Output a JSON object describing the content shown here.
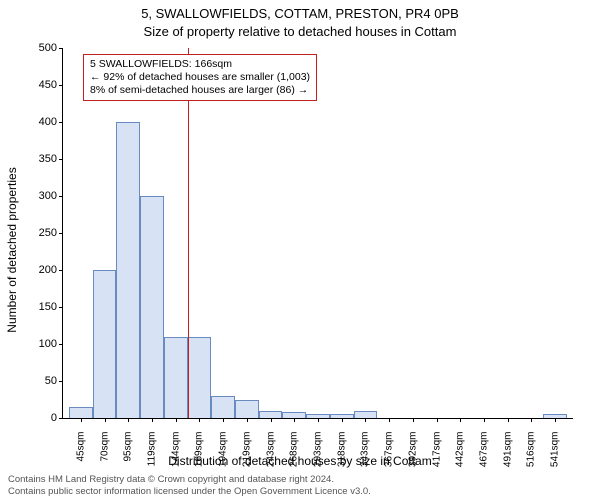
{
  "title_line1": "5, SWALLOWFIELDS, COTTAM, PRESTON, PR4 0PB",
  "title_line2": "Size of property relative to detached houses in Cottam",
  "ylabel": "Number of detached properties",
  "xlabel": "Distribution of detached houses by size in Cottam",
  "chart": {
    "type": "histogram",
    "ylim": [
      0,
      500
    ],
    "ytick_step": 50,
    "background_color": "#ffffff",
    "axis_color": "#000000",
    "bar_fill": "#d7e3f4",
    "bar_stroke": "#6a8bc0",
    "bar_width_ratio": 1.0,
    "marker_color": "#c02020",
    "xcategories": [
      "45sqm",
      "70sqm",
      "95sqm",
      "119sqm",
      "144sqm",
      "169sqm",
      "194sqm",
      "219sqm",
      "243sqm",
      "268sqm",
      "293sqm",
      "318sqm",
      "343sqm",
      "367sqm",
      "392sqm",
      "417sqm",
      "442sqm",
      "467sqm",
      "491sqm",
      "516sqm",
      "541sqm"
    ],
    "values": [
      15,
      200,
      400,
      300,
      110,
      110,
      30,
      25,
      10,
      8,
      5,
      5,
      10,
      0,
      0,
      0,
      0,
      0,
      0,
      0,
      5
    ],
    "marker_index": 5,
    "annotation_border": "#c02020",
    "annotation_bg": "#ffffff",
    "annotation_fontsize": 10.5,
    "tick_fontsize": 11,
    "label_fontsize": 12
  },
  "annotation": {
    "line1": "5 SWALLOWFIELDS: 166sqm",
    "line2": "← 92% of detached houses are smaller (1,003)",
    "line3": "8% of semi-detached houses are larger (86) →"
  },
  "footer": {
    "line1": "Contains HM Land Registry data © Crown copyright and database right 2024.",
    "line2": "Contains public sector information licensed under the Open Government Licence v3.0."
  }
}
